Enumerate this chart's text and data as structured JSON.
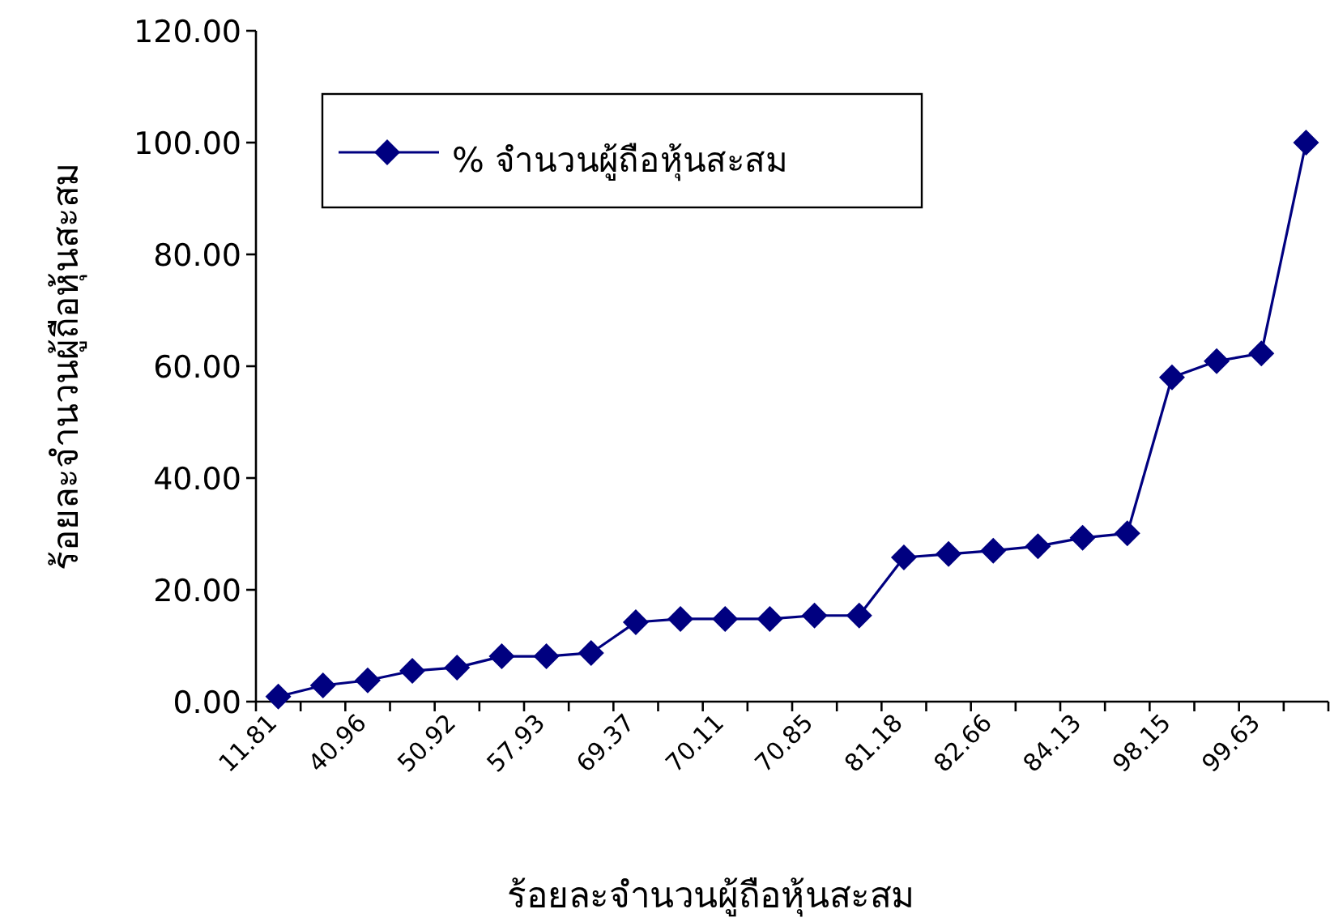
{
  "chart_data": {
    "type": "line",
    "xlabel": "ร้อยละจำนวนผู้ถือหุ้นสะสม",
    "ylabel": "ร้อยละจำนวนผู้ถือหุ้นสะสม",
    "categories": [
      "11.81",
      null,
      "40.96",
      null,
      "50.92",
      null,
      "57.93",
      null,
      "69.37",
      null,
      "70.11",
      null,
      "70.85",
      null,
      "81.18",
      null,
      "82.66",
      null,
      "84.13",
      null,
      "98.15",
      null,
      "99.63",
      null
    ],
    "series": [
      {
        "name": "% จำนวนผู้ถือหุ้นสะสม",
        "color": "#000080",
        "values": [
          0.9,
          2.9,
          3.8,
          5.5,
          6.1,
          8.1,
          8.1,
          8.7,
          14.2,
          14.8,
          14.8,
          14.8,
          15.4,
          15.4,
          25.8,
          26.4,
          27.0,
          27.8,
          29.3,
          30.1,
          58.0,
          60.9,
          62.3,
          100
        ]
      }
    ],
    "ylim": [
      0,
      120
    ],
    "yticks": [
      {
        "value": 0,
        "label": "0.00"
      },
      {
        "value": 20,
        "label": "20.00"
      },
      {
        "value": 40,
        "label": "40.00"
      },
      {
        "value": 60,
        "label": "60.00"
      },
      {
        "value": 80,
        "label": "80.00"
      },
      {
        "value": 100,
        "label": "100.00"
      },
      {
        "value": 120,
        "label": "120.00"
      }
    ],
    "legend": "top left",
    "marker": "diamond",
    "line_style": "solid",
    "grid": false
  }
}
